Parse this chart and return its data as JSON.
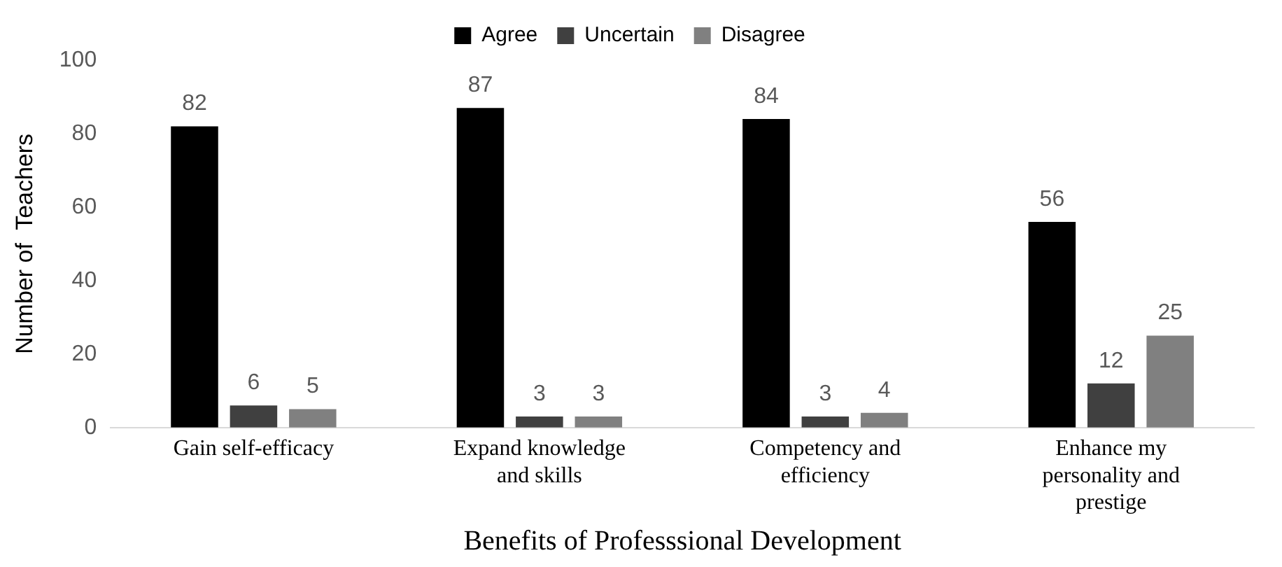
{
  "chart_data": {
    "type": "bar",
    "xlabel": "Benefits of Professsional Development",
    "ylabel": "Number of  Teachers",
    "categories": [
      "Gain self-efficacy",
      "Expand knowledge and skills",
      "Competency and efficiency",
      "Enhance my personality and prestige"
    ],
    "series": [
      {
        "name": "Agree",
        "color": "#000000",
        "values": [
          82,
          87,
          84,
          56
        ]
      },
      {
        "name": "Uncertain",
        "color": "#404040",
        "values": [
          6,
          3,
          3,
          12
        ]
      },
      {
        "name": "Disagree",
        "color": "#808080",
        "values": [
          5,
          3,
          4,
          25
        ]
      }
    ],
    "ylim": [
      0,
      100
    ],
    "yticks": [
      0,
      20,
      40,
      60,
      80,
      100
    ],
    "grid": false,
    "legend": "top",
    "data_labels": true
  }
}
